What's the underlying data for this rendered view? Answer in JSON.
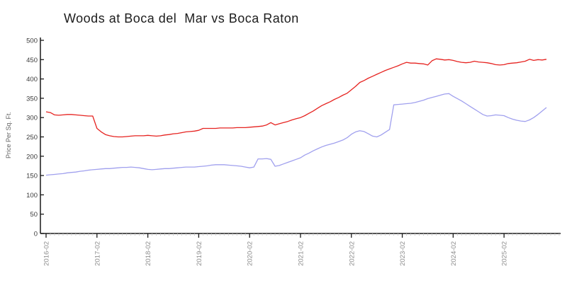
{
  "chart_title": "Woods at Boca del  Mar vs Boca Raton",
  "chart_data": {
    "type": "line",
    "title": "Woods at Boca del  Mar vs Boca Raton",
    "xlabel": "",
    "ylabel": "Price Per Sq. Ft.",
    "ylim": [
      0,
      500
    ],
    "ytick_step": 50,
    "grid": false,
    "legend": "none",
    "x_unit": "month",
    "x_start": "2016-02",
    "x_end": "2025-12",
    "x_major_ticks": [
      "2016-02",
      "2017-02",
      "2018-02",
      "2019-02",
      "2020-02",
      "2021-02",
      "2022-02",
      "2023-02",
      "2024-02",
      "2025-02"
    ],
    "axis_color": "#1a1a1a",
    "minor_tick_color": "#c8c8c8",
    "series": [
      {
        "name": "series-red",
        "color": "#e62320",
        "values": [
          315,
          313,
          307,
          306,
          307,
          308,
          308,
          307,
          306,
          305,
          304,
          304,
          272,
          263,
          256,
          253,
          251,
          250,
          250,
          251,
          252,
          253,
          253,
          253,
          254,
          253,
          252,
          253,
          255,
          256,
          258,
          259,
          261,
          263,
          264,
          265,
          267,
          272,
          272,
          272,
          272,
          273,
          273,
          273,
          273,
          274,
          274,
          274,
          275,
          276,
          277,
          278,
          281,
          287,
          281,
          284,
          287,
          290,
          294,
          297,
          300,
          305,
          311,
          317,
          324,
          331,
          336,
          341,
          347,
          352,
          358,
          363,
          372,
          381,
          391,
          396,
          402,
          407,
          412,
          417,
          422,
          426,
          430,
          434,
          439,
          443,
          441,
          441,
          440,
          439,
          436,
          447,
          452,
          451,
          449,
          450,
          448,
          445,
          443,
          442,
          443,
          446,
          444,
          443,
          442,
          440,
          437,
          436,
          437,
          440,
          441,
          442,
          444,
          446,
          451,
          448,
          450,
          449,
          451
        ]
      },
      {
        "name": "series-blue",
        "color": "#a0a0ee",
        "values": [
          151,
          152,
          153,
          154,
          155,
          157,
          158,
          159,
          161,
          162,
          164,
          165,
          166,
          167,
          168,
          168,
          169,
          170,
          171,
          171,
          172,
          171,
          170,
          168,
          166,
          165,
          166,
          167,
          168,
          168,
          169,
          170,
          171,
          172,
          172,
          172,
          173,
          174,
          175,
          177,
          178,
          178,
          178,
          177,
          176,
          175,
          174,
          172,
          170,
          172,
          193,
          193,
          194,
          192,
          174,
          176,
          180,
          184,
          188,
          192,
          196,
          203,
          208,
          214,
          219,
          224,
          228,
          231,
          234,
          238,
          242,
          248,
          257,
          263,
          266,
          264,
          258,
          252,
          250,
          255,
          262,
          269,
          333,
          334,
          335,
          336,
          337,
          339,
          342,
          345,
          349,
          352,
          355,
          358,
          361,
          362,
          355,
          349,
          343,
          336,
          329,
          322,
          315,
          308,
          304,
          305,
          307,
          306,
          305,
          300,
          296,
          293,
          291,
          290,
          294,
          300,
          308,
          317,
          326
        ]
      }
    ]
  }
}
